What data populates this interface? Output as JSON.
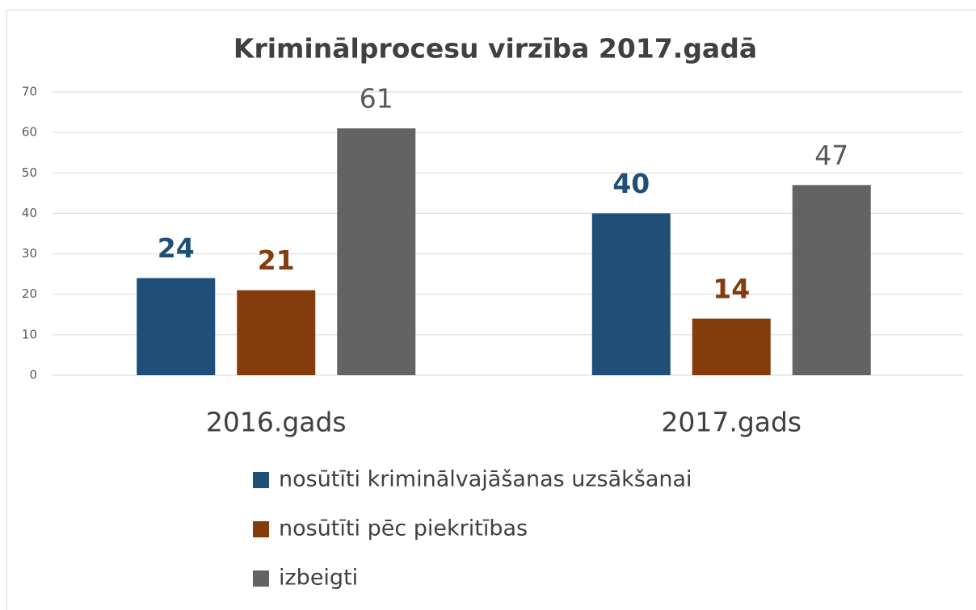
{
  "chart_data": {
    "type": "bar",
    "title": "Kriminālprocesu virzība 2017.gadā",
    "categories": [
      "2016.gads",
      "2017.gads"
    ],
    "series": [
      {
        "name": "nosūtīti kriminālvajāšanas uzsākšanai",
        "color": "#1f4e79",
        "values": [
          24,
          40
        ]
      },
      {
        "name": "nosūtīti pēc piekritības",
        "color": "#843c0c",
        "values": [
          21,
          14
        ]
      },
      {
        "name": "izbeigti",
        "color": "#636363",
        "values": [
          61,
          47
        ]
      }
    ],
    "ylim": [
      0,
      70
    ],
    "yticks": [
      0,
      10,
      20,
      30,
      40,
      50,
      60,
      70
    ],
    "grid": true,
    "legend": "bottom"
  }
}
